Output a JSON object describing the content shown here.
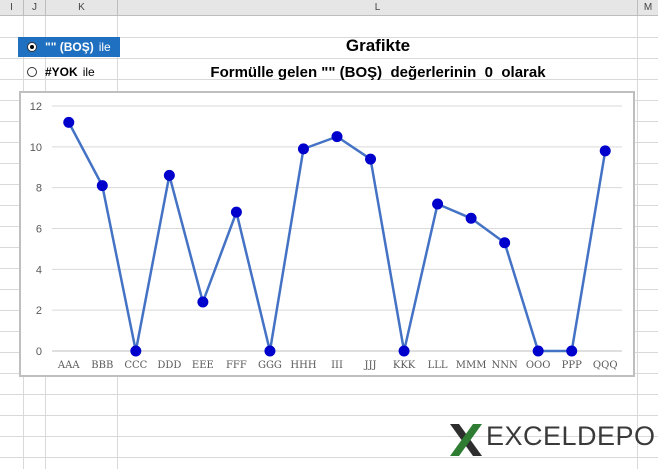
{
  "columns": [
    "I",
    "J",
    "K",
    "L",
    "M"
  ],
  "options": [
    {
      "label": "\"\" (BOŞ)",
      "suffix": "ile",
      "selected": true
    },
    {
      "label": "#YOK",
      "suffix": "ile",
      "selected": false
    }
  ],
  "title_line1": "Grafikte",
  "title_line2": "Formülle gelen \"\" (BOŞ)  değerlerinin  0  olarak",
  "chart_data": {
    "type": "line",
    "categories": [
      "AAA",
      "BBB",
      "CCC",
      "DDD",
      "EEE",
      "FFF",
      "GGG",
      "HHH",
      "III",
      "JJJ",
      "KKK",
      "LLL",
      "MMM",
      "NNN",
      "OOO",
      "PPP",
      "QQQ"
    ],
    "values": [
      11.2,
      8.1,
      0,
      8.6,
      2.4,
      6.8,
      0,
      9.9,
      10.5,
      9.4,
      0,
      7.2,
      6.5,
      5.3,
      0,
      0,
      9.8
    ],
    "ylim": [
      0,
      12
    ],
    "yticks": [
      0,
      2,
      4,
      6,
      8,
      10,
      12
    ],
    "grid": true,
    "title": "",
    "xlabel": "",
    "ylabel": "",
    "line_color": "#4472c4",
    "marker_color": "#0000cc"
  },
  "logo": {
    "text": "EXCELDEPO",
    "icon": "excel-x-icon"
  }
}
